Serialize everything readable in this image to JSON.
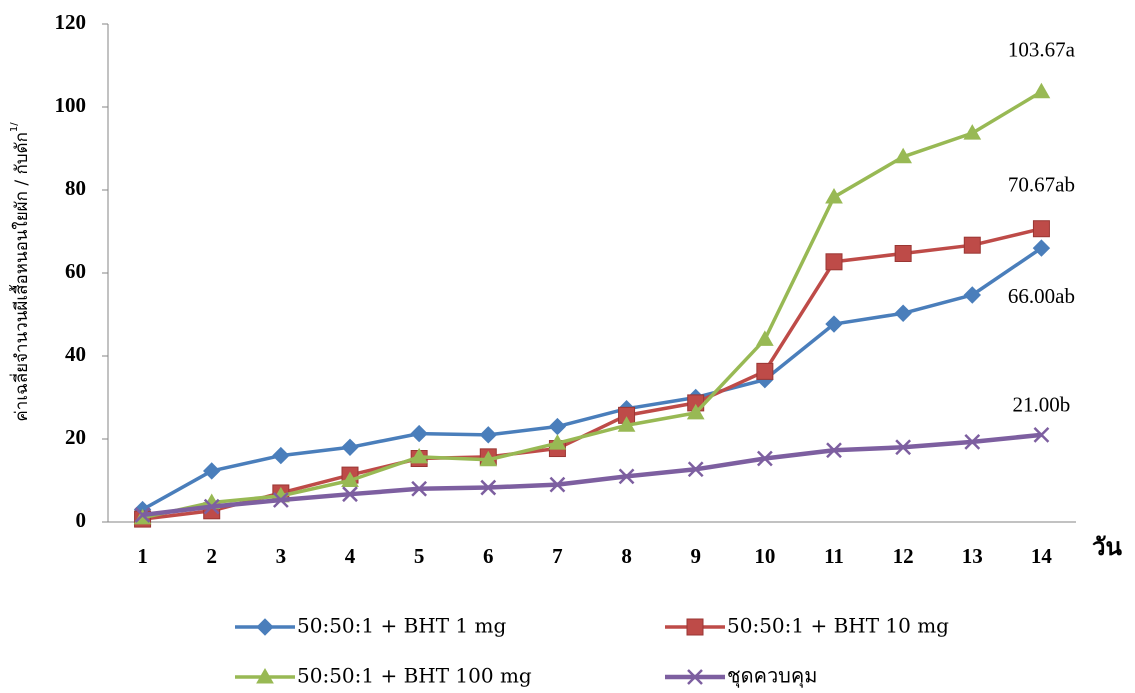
{
  "chart_data": {
    "type": "line",
    "y_label": "ค่าเฉลี่ยจำนวนผีเสื้อหนอนใยผัก / กับดัก",
    "y_label_superscript": "1/",
    "x_label": "วัน",
    "categories": [
      "1",
      "2",
      "3",
      "4",
      "5",
      "6",
      "7",
      "8",
      "9",
      "10",
      "11",
      "12",
      "13",
      "14"
    ],
    "ylim": [
      0,
      120
    ],
    "yticks": [
      0,
      20,
      40,
      60,
      80,
      100,
      120
    ],
    "series": [
      {
        "name": "50:50:1 + BHT 1 mg",
        "color": "#4a7ebb",
        "marker": "diamond",
        "values": [
          3,
          12.3,
          16,
          18,
          21.3,
          21,
          23,
          27.3,
          30,
          34.3,
          47.7,
          50.3,
          54.7,
          66
        ],
        "value_labels": [
          null,
          null,
          null,
          null,
          null,
          null,
          null,
          null,
          null,
          null,
          null,
          null,
          null,
          "66.00ab"
        ]
      },
      {
        "name": "50:50:1 + BHT 10 mg",
        "color": "#be4b48",
        "marker": "square",
        "values": [
          0.7,
          2.7,
          7,
          11.3,
          15.3,
          15.7,
          17.7,
          25.7,
          28.7,
          36.3,
          62.7,
          64.7,
          66.7,
          70.67
        ],
        "value_labels": [
          null,
          null,
          null,
          null,
          null,
          null,
          null,
          null,
          null,
          null,
          null,
          null,
          null,
          "70.67ab"
        ]
      },
      {
        "name": "50:50:1 + BHT 100 mg",
        "color": "#98b954",
        "marker": "triangle",
        "values": [
          1,
          4.7,
          6.3,
          10,
          15.7,
          15,
          19,
          23.3,
          26.3,
          44,
          78.3,
          88,
          93.7,
          103.67
        ],
        "value_labels": [
          null,
          null,
          null,
          null,
          null,
          null,
          null,
          null,
          null,
          null,
          null,
          null,
          null,
          "103.67a"
        ]
      },
      {
        "name": "ชุดควบคุม",
        "color": "#7d5fa0",
        "marker": "x",
        "values": [
          1.7,
          3.7,
          5.3,
          6.7,
          8,
          8.3,
          9,
          11,
          12.7,
          15.3,
          17.3,
          18,
          19.3,
          21
        ],
        "value_labels": [
          null,
          null,
          null,
          null,
          null,
          null,
          null,
          null,
          null,
          null,
          null,
          null,
          null,
          "21.00b"
        ]
      }
    ]
  }
}
